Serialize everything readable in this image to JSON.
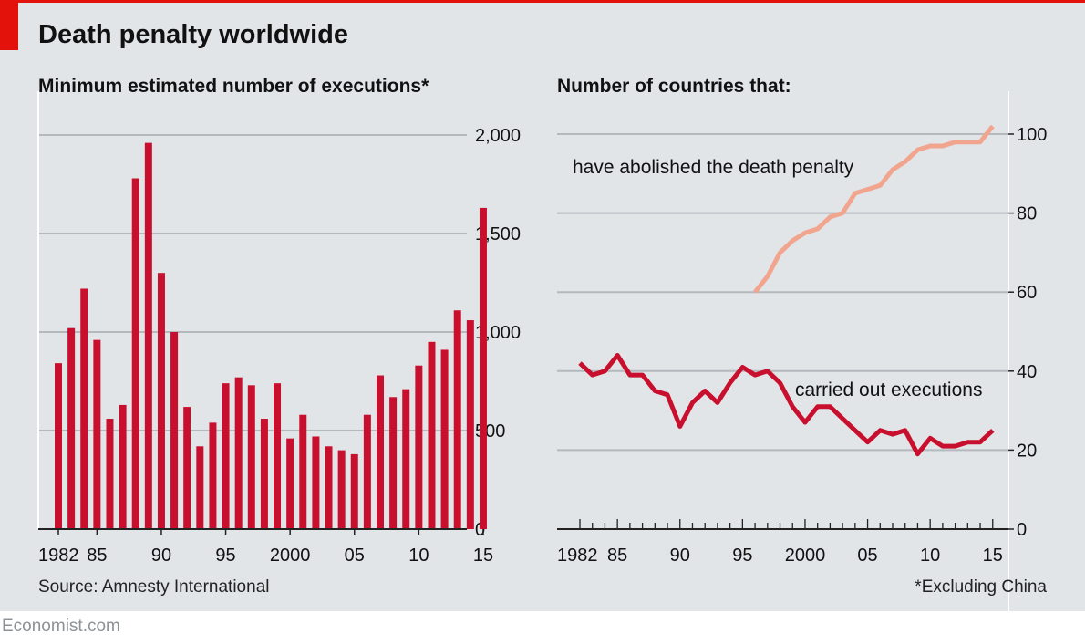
{
  "title": "Death penalty worldwide",
  "source": "Source: Amnesty International",
  "footnote": "*Excluding China",
  "brand": "Economist.com",
  "colors": {
    "panel_bg": "#e1e5e8",
    "accent_red": "#e3120b",
    "bar_red": "#c8102e",
    "abolished_line": "#f2a58e",
    "executions_line": "#c8102e",
    "grid": "#b4b9bd"
  },
  "chart_data": [
    {
      "type": "bar",
      "subtitle": "Minimum estimated number of executions*",
      "x": [
        1982,
        1983,
        1984,
        1985,
        1986,
        1987,
        1988,
        1989,
        1990,
        1991,
        1992,
        1993,
        1994,
        1995,
        1996,
        1997,
        1998,
        1999,
        2000,
        2001,
        2002,
        2003,
        2004,
        2005,
        2006,
        2007,
        2008,
        2009,
        2010,
        2011,
        2012,
        2013,
        2014,
        2015
      ],
      "values": [
        842,
        1020,
        1220,
        960,
        560,
        630,
        1780,
        1960,
        1300,
        1000,
        620,
        420,
        540,
        740,
        770,
        730,
        560,
        740,
        460,
        580,
        470,
        420,
        400,
        380,
        580,
        780,
        670,
        710,
        830,
        950,
        910,
        1110,
        1060,
        1630
      ],
      "ylim": [
        0,
        2000
      ],
      "y_ticks": [
        0,
        500,
        1000,
        1500,
        2000
      ],
      "y_tick_labels": [
        "0",
        "500",
        "1,000",
        "1,500",
        "2,000"
      ],
      "x_tick_labels": [
        {
          "x": 1982,
          "label": "1982"
        },
        {
          "x": 1985,
          "label": "85"
        },
        {
          "x": 1990,
          "label": "90"
        },
        {
          "x": 1995,
          "label": "95"
        },
        {
          "x": 2000,
          "label": "2000"
        },
        {
          "x": 2005,
          "label": "05"
        },
        {
          "x": 2010,
          "label": "10"
        },
        {
          "x": 2015,
          "label": "15"
        }
      ],
      "grid": true
    },
    {
      "type": "line",
      "subtitle": "Number of countries that:",
      "ylim": [
        0,
        100
      ],
      "y_ticks": [
        0,
        20,
        40,
        60,
        80,
        100
      ],
      "y_tick_labels": [
        "0",
        "20",
        "40",
        "60",
        "80",
        "100"
      ],
      "x_tick_labels": [
        {
          "x": 1982,
          "label": "1982"
        },
        {
          "x": 1985,
          "label": "85"
        },
        {
          "x": 1990,
          "label": "90"
        },
        {
          "x": 1995,
          "label": "95"
        },
        {
          "x": 2000,
          "label": "2000"
        },
        {
          "x": 2005,
          "label": "05"
        },
        {
          "x": 2010,
          "label": "10"
        },
        {
          "x": 2015,
          "label": "15"
        }
      ],
      "grid": true,
      "series": [
        {
          "name": "have abolished the death penalty",
          "x": [
            1996,
            1997,
            1998,
            1999,
            2000,
            2001,
            2002,
            2003,
            2004,
            2005,
            2006,
            2007,
            2008,
            2009,
            2010,
            2011,
            2012,
            2013,
            2014,
            2015
          ],
          "values": [
            60,
            64,
            70,
            73,
            75,
            76,
            79,
            80,
            85,
            86,
            87,
            91,
            93,
            96,
            97,
            97,
            98,
            98,
            98,
            102
          ]
        },
        {
          "name": "carried out executions",
          "x": [
            1982,
            1983,
            1984,
            1985,
            1986,
            1987,
            1988,
            1989,
            1990,
            1991,
            1992,
            1993,
            1994,
            1995,
            1996,
            1997,
            1998,
            1999,
            2000,
            2001,
            2002,
            2003,
            2004,
            2005,
            2006,
            2007,
            2008,
            2009,
            2010,
            2011,
            2012,
            2013,
            2014,
            2015
          ],
          "values": [
            42,
            39,
            40,
            44,
            39,
            39,
            35,
            34,
            26,
            32,
            35,
            32,
            37,
            41,
            39,
            40,
            37,
            31,
            27,
            31,
            31,
            28,
            25,
            22,
            25,
            24,
            25,
            19,
            23,
            21,
            21,
            22,
            22,
            25
          ]
        }
      ]
    }
  ]
}
